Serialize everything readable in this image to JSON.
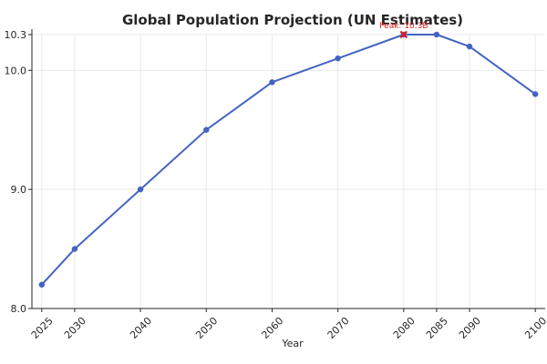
{
  "chart_data": {
    "type": "line",
    "title": "Global Population Projection (UN Estimates)",
    "xlabel": "Year",
    "ylabel": "",
    "x": [
      2025,
      2030,
      2040,
      2050,
      2060,
      2070,
      2080,
      2085,
      2090,
      2100
    ],
    "xticks": [
      "2025",
      "2030",
      "2040",
      "2050",
      "2060",
      "2070",
      "2080",
      "2085",
      "2090",
      "2100"
    ],
    "series": [
      {
        "values": [
          8.2,
          8.5,
          9.0,
          9.5,
          9.9,
          10.1,
          10.3,
          10.3,
          10.2,
          9.8
        ],
        "color": "#4463c1",
        "marker": "circle"
      }
    ],
    "ylim": [
      8.0,
      10.3
    ],
    "yticks": [
      8.0,
      9.0,
      10.0,
      10.3
    ],
    "ytick_labels": [
      "8.0",
      "9.0",
      "10.0",
      "10.3"
    ],
    "grid": true,
    "annotation": {
      "text": "Peak: 10.3B",
      "x": 2080,
      "y": 10.3,
      "color": "#e41a1c",
      "marker": "x"
    }
  }
}
